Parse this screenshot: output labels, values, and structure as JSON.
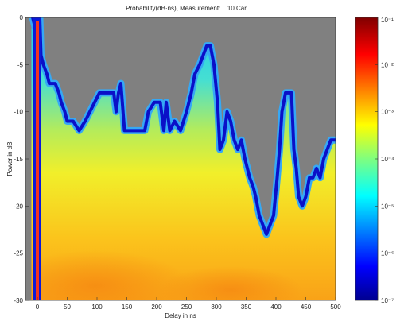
{
  "chart_data": {
    "type": "heatmap",
    "title": "Probability(dB·ns),   Measurement: L 10 Car",
    "xlabel": "Delay in ns",
    "ylabel": "Power in dB",
    "xlim": [
      -20,
      500
    ],
    "ylim": [
      -30,
      0
    ],
    "x_ticks": [
      0,
      50,
      100,
      150,
      200,
      250,
      300,
      350,
      400,
      450,
      500
    ],
    "x_tick_labels": [
      "0",
      "50",
      "100",
      "150",
      "200",
      "250",
      "300",
      "350",
      "400",
      "450",
      "500"
    ],
    "y_ticks": [
      0,
      -5,
      -10,
      -15,
      -20,
      -25,
      -30
    ],
    "y_tick_labels": [
      "0",
      "-5",
      "-10",
      "-15",
      "-20",
      "-25",
      "-30"
    ],
    "colorbar": {
      "scale": "log",
      "min": 1e-07,
      "max": 0.1,
      "ticks": [
        0.1,
        0.01,
        0.001,
        0.0001,
        1e-05,
        1e-06,
        1e-07
      ],
      "tick_labels": [
        "10⁻¹",
        "10⁻²",
        "10⁻³",
        "10⁻⁴",
        "10⁻⁵",
        "10⁻⁶",
        "10⁻⁷"
      ]
    },
    "no_data_color": "#808080",
    "upper_boundary_dB": {
      "delay_ns": [
        -10,
        -8,
        -4,
        0,
        2,
        4,
        6,
        10,
        16,
        20,
        26,
        30,
        36,
        40,
        46,
        50,
        60,
        70,
        80,
        88,
        96,
        104,
        112,
        120,
        128,
        132,
        136,
        140,
        146,
        150,
        156,
        164,
        172,
        176,
        180,
        186,
        196,
        206,
        212,
        216,
        222,
        230,
        240,
        250,
        258,
        264,
        272,
        278,
        284,
        290,
        296,
        302,
        306,
        312,
        318,
        324,
        330,
        336,
        342,
        348,
        352,
        356,
        362,
        366,
        372,
        378,
        384,
        390,
        396,
        402,
        406,
        410,
        416,
        420,
        426,
        430,
        434,
        438,
        444,
        450,
        456,
        462,
        468,
        474,
        480,
        486,
        492,
        500
      ],
      "power_dB": [
        0,
        0,
        -1,
        -1,
        0,
        0,
        -4,
        -5,
        -6,
        -7,
        -7,
        -7,
        -8,
        -9,
        -10,
        -11,
        -11,
        -12,
        -11,
        -10,
        -9,
        -8,
        -8,
        -8,
        -8,
        -10,
        -8,
        -7,
        -12,
        -12,
        -12,
        -12,
        -12,
        -12,
        -12,
        -10,
        -9,
        -9,
        -12,
        -9,
        -12,
        -11,
        -12,
        -10,
        -8,
        -6,
        -5,
        -4,
        -3,
        -3,
        -5,
        -9,
        -14,
        -13,
        -10,
        -11,
        -13,
        -14,
        -13,
        -15,
        -16,
        -17,
        -18,
        -19,
        -21,
        -22,
        -23,
        -22,
        -21,
        -17,
        -14,
        -10,
        -8,
        -8,
        -8,
        -14,
        -16,
        -19,
        -20,
        -19,
        -17,
        -17,
        -16,
        -17,
        -15,
        -14,
        -13,
        -13
      ]
    },
    "spike_delay_ns": 0
  }
}
